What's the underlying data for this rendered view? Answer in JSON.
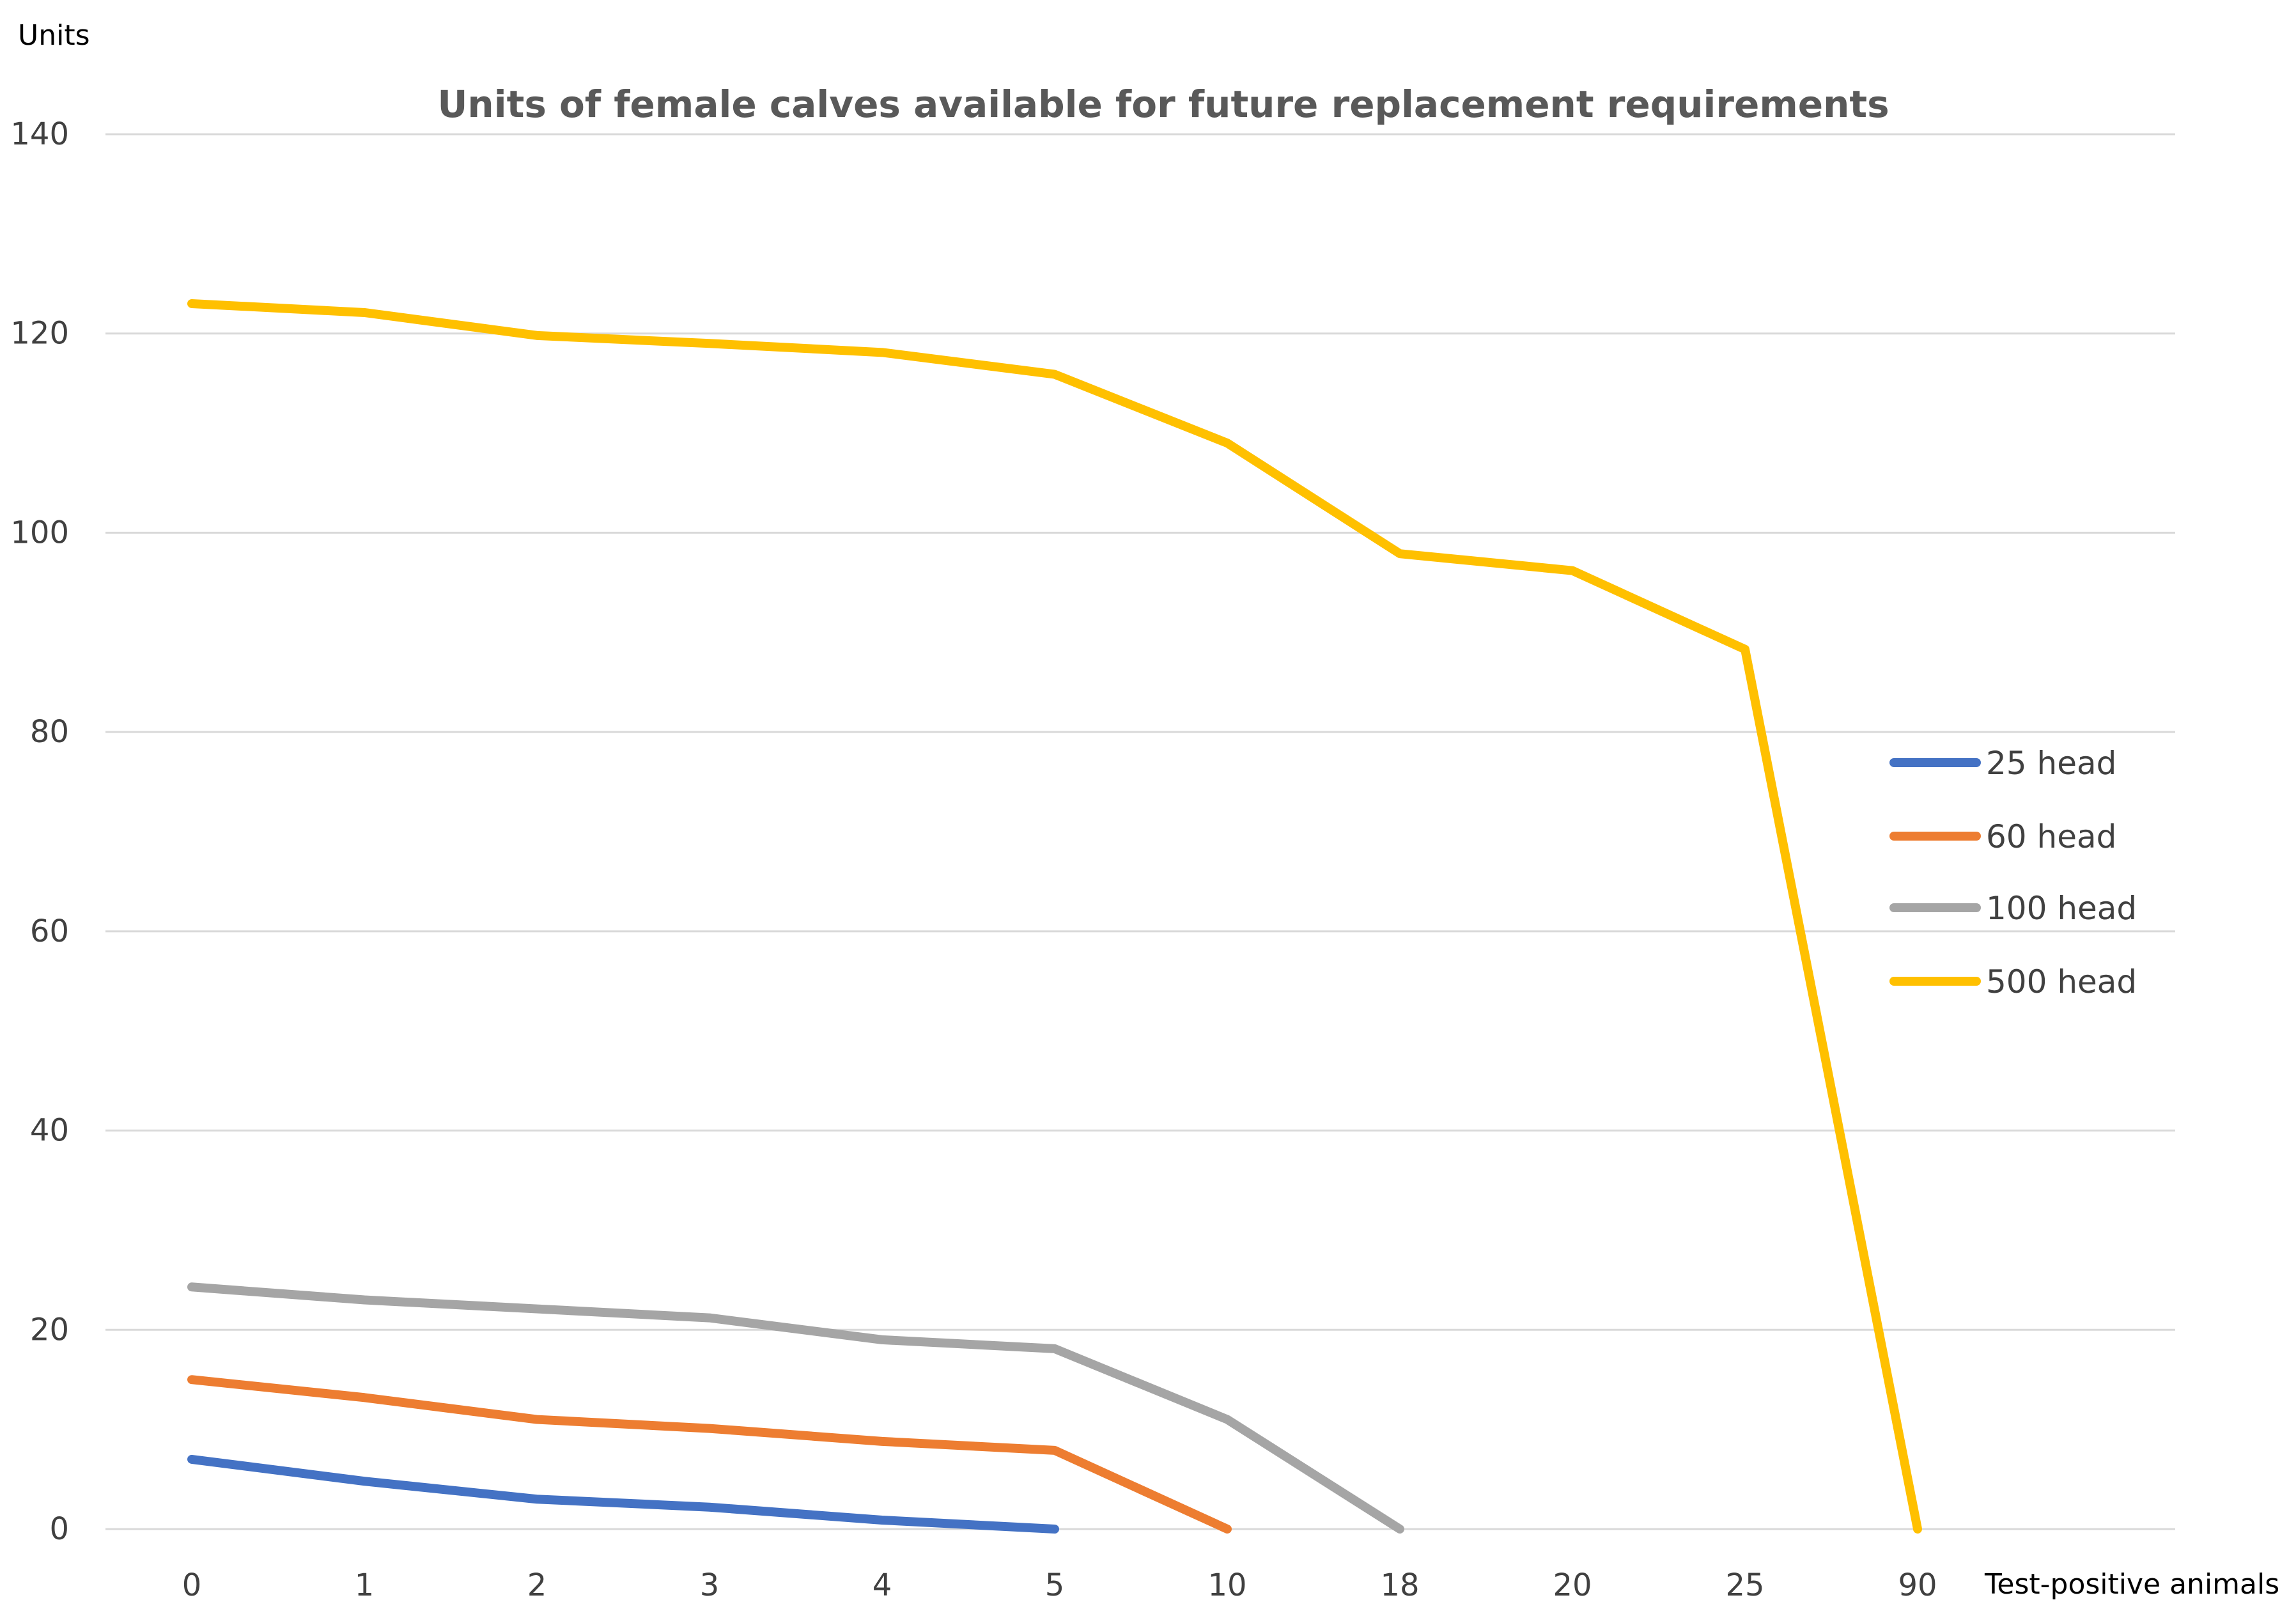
{
  "chart_data": {
    "type": "line",
    "title": "Units of female calves available for future replacement requirements",
    "ylabel": "Units",
    "xlabel": "Test-positive animals",
    "categories": [
      "0",
      "1",
      "2",
      "3",
      "4",
      "5",
      "10",
      "18",
      "20",
      "25",
      "90"
    ],
    "ylim": [
      0,
      140
    ],
    "yticks": [
      0,
      20,
      40,
      60,
      80,
      100,
      120,
      140
    ],
    "grid": true,
    "legend_position": "right",
    "series": [
      {
        "name": "25 head",
        "color": "#4472c4",
        "values": [
          7,
          4.8,
          3,
          2.2,
          0.9,
          0,
          null,
          null,
          null,
          null,
          null
        ]
      },
      {
        "name": "60 head",
        "color": "#ed7d31",
        "values": [
          15,
          13.2,
          11,
          10.1,
          8.8,
          7.9,
          0,
          null,
          null,
          null,
          null
        ]
      },
      {
        "name": "100 head",
        "color": "#a5a5a5",
        "values": [
          24.3,
          23,
          22.1,
          21.2,
          19,
          18.1,
          11,
          0,
          null,
          null,
          null
        ]
      },
      {
        "name": "500 head",
        "color": "#ffc000",
        "values": [
          123,
          122.1,
          119.8,
          119,
          118.1,
          115.9,
          109,
          97.9,
          96.2,
          88.3,
          0
        ]
      }
    ]
  }
}
